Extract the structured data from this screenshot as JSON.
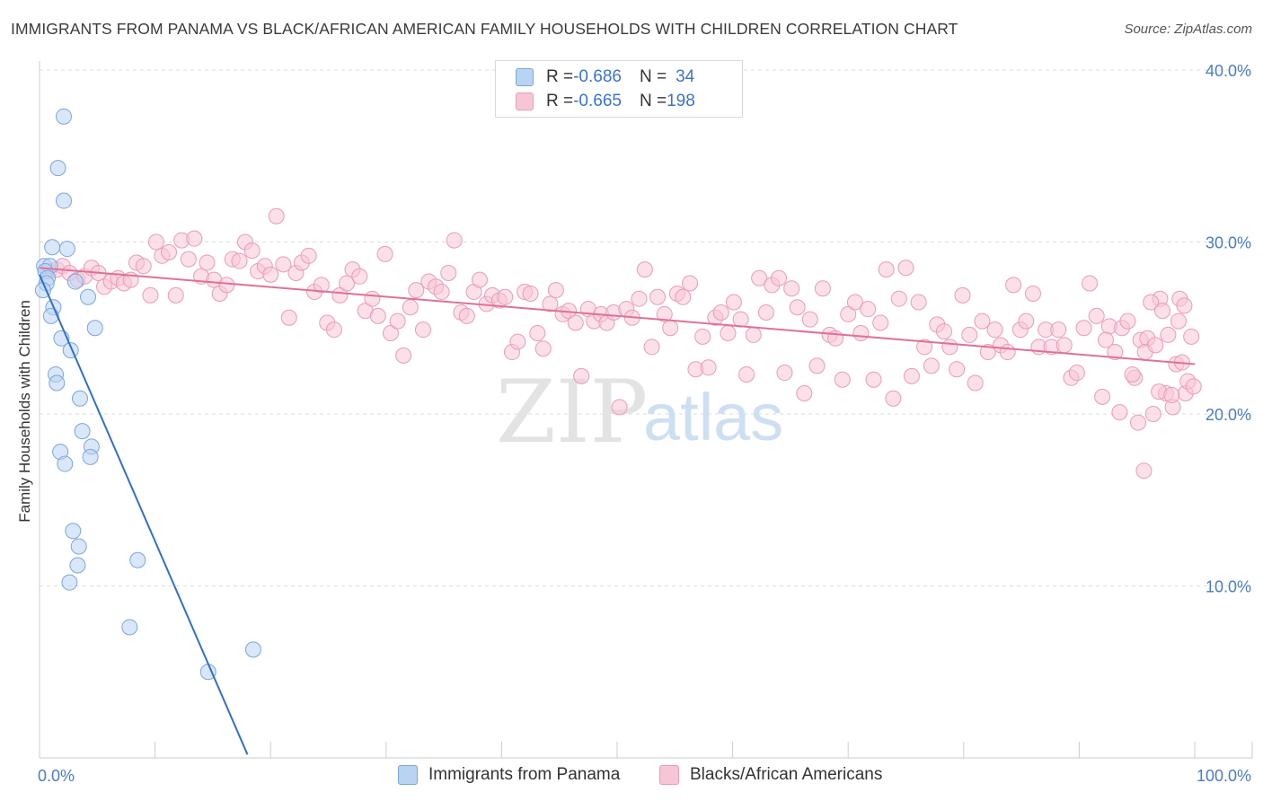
{
  "title": "IMMIGRANTS FROM PANAMA VS BLACK/AFRICAN AMERICAN FAMILY HOUSEHOLDS WITH CHILDREN CORRELATION CHART",
  "source": "Source: ZipAtlas.com",
  "watermark": {
    "zip": "ZIP",
    "atlas": "atlas"
  },
  "colors": {
    "blue_fill": "#b9d3f3",
    "blue_stroke": "#7aa6e0",
    "blue_line": "#2f6fd0",
    "pink_fill": "#f7c6d6",
    "pink_stroke": "#eb9bb6",
    "pink_line": "#e07098",
    "grid": "#dddddd",
    "tick_text": "#4a7bc8"
  },
  "legend": {
    "series1": {
      "r_label": "R = ",
      "r_value": "-0.686",
      "n_label": "N = ",
      "n_value": "34"
    },
    "series2": {
      "r_label": "R = ",
      "r_value": "-0.665",
      "n_label": "N = ",
      "n_value": "198"
    }
  },
  "chart_data": {
    "type": "scatter",
    "title": "IMMIGRANTS FROM PANAMA VS BLACK/AFRICAN AMERICAN FAMILY HOUSEHOLDS WITH CHILDREN CORRELATION CHART",
    "xlabel": "",
    "ylabel": "Family Households with Children",
    "xlim": [
      0,
      100
    ],
    "ylim": [
      0,
      40
    ],
    "x_ticks": [
      "0.0%",
      "100.0%"
    ],
    "y_ticks": [
      {
        "value": 10,
        "label": "10.0%"
      },
      {
        "value": 20,
        "label": "20.0%"
      },
      {
        "value": 30,
        "label": "30.0%"
      },
      {
        "value": 40,
        "label": "40.0%"
      }
    ],
    "grid": true,
    "legend_position": "top-center and bottom",
    "series": [
      {
        "name": "Immigrants from Panama",
        "color": "#b9d3f3",
        "trend": {
          "x": [
            0,
            18
          ],
          "y": [
            28.1,
            0.2
          ]
        },
        "points": [
          [
            2.1,
            37.3
          ],
          [
            1.6,
            34.3
          ],
          [
            2.1,
            32.4
          ],
          [
            1.1,
            29.7
          ],
          [
            2.4,
            29.6
          ],
          [
            0.4,
            28.6
          ],
          [
            0.9,
            28.6
          ],
          [
            0.5,
            28.3
          ],
          [
            0.7,
            27.9
          ],
          [
            0.6,
            27.6
          ],
          [
            0.3,
            27.2
          ],
          [
            3.1,
            27.7
          ],
          [
            4.2,
            26.8
          ],
          [
            1.2,
            26.2
          ],
          [
            1.0,
            25.7
          ],
          [
            4.8,
            25.0
          ],
          [
            1.9,
            24.4
          ],
          [
            2.7,
            23.7
          ],
          [
            1.4,
            22.3
          ],
          [
            1.5,
            21.8
          ],
          [
            3.5,
            20.9
          ],
          [
            3.7,
            19.0
          ],
          [
            1.8,
            17.8
          ],
          [
            4.5,
            18.1
          ],
          [
            4.4,
            17.5
          ],
          [
            2.2,
            17.1
          ],
          [
            2.9,
            13.2
          ],
          [
            3.4,
            12.3
          ],
          [
            8.5,
            11.5
          ],
          [
            3.3,
            11.2
          ],
          [
            2.6,
            10.2
          ],
          [
            7.8,
            7.6
          ],
          [
            18.5,
            6.3
          ],
          [
            14.6,
            5.0
          ]
        ]
      },
      {
        "name": "Blacks/African Americans",
        "color": "#f7c6d6",
        "trend": {
          "x": [
            0,
            100
          ],
          "y": [
            28.5,
            22.9
          ]
        },
        "points": [
          [
            0.8,
            28.3
          ],
          [
            1.5,
            28.4
          ],
          [
            2.0,
            28.6
          ],
          [
            2.6,
            28.2
          ],
          [
            3.3,
            27.8
          ],
          [
            3.9,
            28.0
          ],
          [
            4.5,
            28.5
          ],
          [
            5.1,
            28.2
          ],
          [
            5.6,
            27.4
          ],
          [
            6.2,
            27.7
          ],
          [
            6.8,
            27.9
          ],
          [
            7.3,
            27.6
          ],
          [
            7.9,
            27.8
          ],
          [
            8.4,
            28.8
          ],
          [
            9.0,
            28.6
          ],
          [
            9.6,
            26.9
          ],
          [
            10.1,
            30.0
          ],
          [
            10.6,
            29.2
          ],
          [
            11.2,
            29.4
          ],
          [
            11.8,
            26.9
          ],
          [
            12.3,
            30.1
          ],
          [
            12.9,
            29.0
          ],
          [
            13.4,
            30.2
          ],
          [
            14.0,
            28.0
          ],
          [
            14.5,
            28.8
          ],
          [
            15.1,
            27.8
          ],
          [
            15.6,
            27.0
          ],
          [
            16.2,
            27.5
          ],
          [
            16.7,
            29.0
          ],
          [
            17.3,
            28.9
          ],
          [
            17.8,
            30.0
          ],
          [
            18.4,
            29.5
          ],
          [
            18.9,
            28.3
          ],
          [
            19.5,
            28.6
          ],
          [
            20.0,
            28.1
          ],
          [
            20.5,
            31.5
          ],
          [
            21.1,
            28.7
          ],
          [
            21.6,
            25.6
          ],
          [
            22.2,
            28.2
          ],
          [
            22.7,
            28.8
          ],
          [
            23.3,
            29.2
          ],
          [
            23.8,
            27.1
          ],
          [
            24.4,
            27.5
          ],
          [
            24.9,
            25.3
          ],
          [
            25.5,
            24.9
          ],
          [
            26.0,
            26.9
          ],
          [
            26.6,
            27.6
          ],
          [
            27.1,
            28.4
          ],
          [
            27.7,
            28.0
          ],
          [
            28.2,
            26.0
          ],
          [
            28.8,
            26.7
          ],
          [
            29.3,
            25.7
          ],
          [
            29.9,
            29.3
          ],
          [
            30.4,
            24.7
          ],
          [
            31.0,
            25.4
          ],
          [
            31.5,
            23.4
          ],
          [
            32.1,
            26.2
          ],
          [
            32.6,
            27.2
          ],
          [
            33.2,
            24.9
          ],
          [
            33.7,
            27.7
          ],
          [
            34.3,
            27.4
          ],
          [
            34.8,
            27.1
          ],
          [
            35.4,
            28.2
          ],
          [
            35.9,
            30.1
          ],
          [
            36.5,
            25.9
          ],
          [
            37.0,
            25.7
          ],
          [
            37.6,
            27.1
          ],
          [
            38.1,
            27.8
          ],
          [
            38.7,
            26.4
          ],
          [
            39.2,
            26.9
          ],
          [
            39.8,
            26.6
          ],
          [
            40.3,
            26.8
          ],
          [
            40.9,
            23.6
          ],
          [
            41.4,
            24.2
          ],
          [
            42.0,
            27.1
          ],
          [
            42.5,
            27.0
          ],
          [
            43.1,
            24.7
          ],
          [
            43.6,
            23.8
          ],
          [
            44.2,
            26.4
          ],
          [
            44.7,
            27.2
          ],
          [
            45.3,
            25.8
          ],
          [
            45.8,
            26.0
          ],
          [
            46.4,
            25.3
          ],
          [
            46.9,
            22.2
          ],
          [
            47.5,
            26.1
          ],
          [
            48.0,
            25.4
          ],
          [
            48.6,
            25.8
          ],
          [
            49.1,
            25.3
          ],
          [
            49.7,
            25.9
          ],
          [
            50.2,
            20.4
          ],
          [
            50.8,
            26.1
          ],
          [
            51.3,
            25.6
          ],
          [
            51.9,
            26.7
          ],
          [
            52.4,
            28.4
          ],
          [
            53.0,
            23.9
          ],
          [
            53.5,
            26.8
          ],
          [
            54.1,
            25.8
          ],
          [
            54.6,
            25.0
          ],
          [
            55.2,
            27.0
          ],
          [
            55.7,
            26.8
          ],
          [
            56.3,
            27.6
          ],
          [
            56.8,
            22.6
          ],
          [
            57.4,
            24.5
          ],
          [
            57.9,
            22.7
          ],
          [
            58.5,
            25.6
          ],
          [
            59.0,
            25.9
          ],
          [
            59.6,
            24.7
          ],
          [
            60.1,
            26.5
          ],
          [
            60.7,
            25.5
          ],
          [
            61.2,
            22.3
          ],
          [
            61.8,
            24.6
          ],
          [
            62.3,
            27.9
          ],
          [
            62.9,
            25.9
          ],
          [
            63.4,
            27.5
          ],
          [
            64.0,
            27.9
          ],
          [
            64.5,
            22.4
          ],
          [
            65.1,
            27.3
          ],
          [
            65.6,
            26.2
          ],
          [
            66.2,
            21.2
          ],
          [
            66.7,
            25.5
          ],
          [
            67.3,
            22.8
          ],
          [
            67.8,
            27.3
          ],
          [
            68.4,
            24.6
          ],
          [
            68.9,
            24.4
          ],
          [
            69.5,
            22.0
          ],
          [
            70.0,
            25.8
          ],
          [
            70.6,
            26.5
          ],
          [
            71.1,
            24.7
          ],
          [
            71.7,
            26.1
          ],
          [
            72.2,
            22.0
          ],
          [
            72.8,
            25.3
          ],
          [
            73.3,
            28.4
          ],
          [
            73.9,
            20.9
          ],
          [
            74.4,
            26.7
          ],
          [
            75.0,
            28.5
          ],
          [
            75.5,
            22.2
          ],
          [
            76.1,
            26.5
          ],
          [
            76.6,
            23.9
          ],
          [
            77.2,
            22.8
          ],
          [
            77.7,
            25.2
          ],
          [
            78.3,
            24.8
          ],
          [
            78.8,
            23.9
          ],
          [
            79.4,
            22.6
          ],
          [
            79.9,
            26.9
          ],
          [
            80.5,
            24.6
          ],
          [
            81.0,
            21.8
          ],
          [
            81.6,
            25.4
          ],
          [
            82.1,
            23.6
          ],
          [
            82.7,
            24.9
          ],
          [
            83.2,
            24.0
          ],
          [
            83.8,
            23.6
          ],
          [
            84.3,
            27.5
          ],
          [
            84.9,
            24.9
          ],
          [
            85.4,
            25.4
          ],
          [
            86.0,
            27.0
          ],
          [
            86.5,
            23.9
          ],
          [
            87.1,
            24.9
          ],
          [
            87.6,
            23.9
          ],
          [
            88.2,
            24.9
          ],
          [
            88.7,
            24.0
          ],
          [
            89.3,
            22.1
          ],
          [
            89.8,
            22.4
          ],
          [
            90.4,
            25.0
          ],
          [
            90.9,
            27.6
          ],
          [
            91.5,
            25.7
          ],
          [
            92.0,
            21.0
          ],
          [
            92.6,
            25.1
          ],
          [
            93.1,
            23.6
          ],
          [
            93.7,
            25.0
          ],
          [
            94.2,
            25.4
          ],
          [
            94.8,
            22.1
          ],
          [
            95.3,
            24.3
          ],
          [
            95.9,
            24.4
          ],
          [
            96.4,
            20.0
          ],
          [
            97.0,
            26.7
          ],
          [
            97.5,
            21.2
          ],
          [
            98.1,
            20.4
          ],
          [
            98.6,
            25.4
          ],
          [
            99.2,
            21.2
          ],
          [
            99.7,
            24.5
          ],
          [
            94.6,
            22.3
          ],
          [
            95.7,
            23.6
          ],
          [
            96.2,
            26.5
          ],
          [
            96.9,
            21.3
          ],
          [
            97.7,
            24.6
          ],
          [
            98.4,
            22.9
          ],
          [
            98.9,
            23.0
          ],
          [
            99.4,
            21.9
          ],
          [
            99.9,
            21.6
          ],
          [
            95.1,
            19.5
          ],
          [
            95.6,
            16.7
          ],
          [
            96.6,
            24.0
          ],
          [
            97.2,
            26.0
          ],
          [
            98.0,
            21.1
          ],
          [
            98.7,
            26.7
          ],
          [
            99.1,
            26.3
          ],
          [
            92.3,
            24.3
          ],
          [
            93.5,
            20.1
          ]
        ]
      }
    ]
  }
}
